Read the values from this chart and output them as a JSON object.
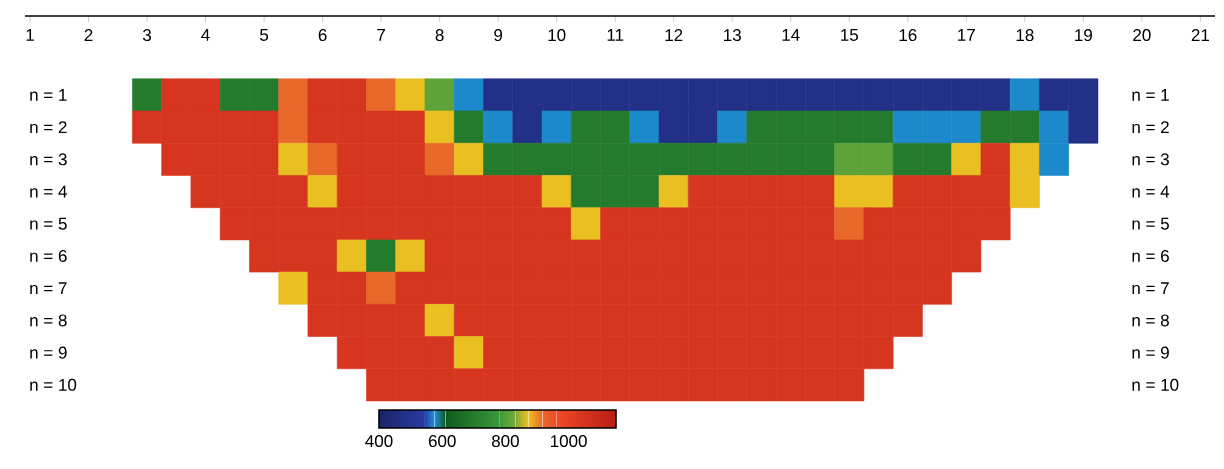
{
  "chart_data": {
    "type": "heatmap",
    "categories": [
      "1",
      null,
      "2",
      null,
      "3",
      null,
      "4",
      null,
      "5",
      null,
      "6",
      null,
      "7",
      null,
      "8",
      null,
      "9",
      null,
      "10",
      null,
      "11",
      null,
      "12",
      null,
      "13",
      null,
      "14",
      null,
      "15",
      null,
      "16",
      null,
      "17",
      null,
      "18",
      null,
      "19",
      null,
      "20",
      null,
      "21"
    ],
    "y_categories": [
      "n = 1",
      "n = 2",
      "n = 3",
      "n = 4",
      "n = 5",
      "n = 6",
      "n = 7",
      "n = 8",
      "n = 9",
      "n = 10"
    ],
    "y2_categories": [
      "n = 1",
      "n = 2",
      "n = 3",
      "n = 4",
      "n = 5",
      "n = 6",
      "n = 7",
      "n = 8",
      "n = 9",
      "n = 10"
    ],
    "cells": [
      [
        null,
        null,
        null,
        null,
        700,
        1050,
        1050,
        700,
        700,
        920,
        1050,
        1050,
        920,
        870,
        810,
        580,
        480,
        480,
        480,
        480,
        480,
        480,
        480,
        480,
        480,
        480,
        480,
        480,
        480,
        480,
        480,
        480,
        480,
        480,
        580,
        480,
        480,
        null,
        null,
        null,
        null
      ],
      [
        null,
        null,
        null,
        null,
        1050,
        1050,
        1050,
        1050,
        1050,
        920,
        1050,
        1050,
        1050,
        1050,
        870,
        700,
        580,
        480,
        580,
        700,
        700,
        580,
        480,
        480,
        580,
        700,
        700,
        700,
        700,
        700,
        580,
        580,
        580,
        700,
        700,
        580,
        480,
        null,
        null,
        null,
        null
      ],
      [
        null,
        null,
        null,
        null,
        null,
        1050,
        1050,
        1050,
        1050,
        870,
        920,
        1050,
        1050,
        1050,
        920,
        870,
        700,
        700,
        700,
        700,
        700,
        700,
        700,
        700,
        700,
        700,
        700,
        700,
        810,
        810,
        700,
        700,
        870,
        1050,
        870,
        580,
        null,
        null,
        null,
        null,
        null
      ],
      [
        null,
        null,
        null,
        null,
        null,
        null,
        1050,
        1050,
        1050,
        1050,
        870,
        1050,
        1050,
        1050,
        1050,
        1050,
        1050,
        1050,
        870,
        700,
        700,
        700,
        870,
        1050,
        1050,
        1050,
        1050,
        1050,
        870,
        870,
        1050,
        1050,
        1050,
        1050,
        870,
        null,
        null,
        null,
        null,
        null,
        null
      ],
      [
        null,
        null,
        null,
        null,
        null,
        null,
        null,
        1050,
        1050,
        1050,
        1050,
        1050,
        1050,
        1050,
        1050,
        1050,
        1050,
        1050,
        1050,
        870,
        1050,
        1050,
        1050,
        1050,
        1050,
        1050,
        1050,
        1050,
        920,
        1050,
        1050,
        1050,
        1050,
        1050,
        null,
        null,
        null,
        null,
        null,
        null,
        null
      ],
      [
        null,
        null,
        null,
        null,
        null,
        null,
        null,
        null,
        1050,
        1050,
        1050,
        870,
        700,
        870,
        1050,
        1050,
        1050,
        1050,
        1050,
        1050,
        1050,
        1050,
        1050,
        1050,
        1050,
        1050,
        1050,
        1050,
        1050,
        1050,
        1050,
        1050,
        1050,
        null,
        null,
        null,
        null,
        null,
        null,
        null,
        null
      ],
      [
        null,
        null,
        null,
        null,
        null,
        null,
        null,
        null,
        null,
        870,
        1050,
        1050,
        920,
        1050,
        1050,
        1050,
        1050,
        1050,
        1050,
        1050,
        1050,
        1050,
        1050,
        1050,
        1050,
        1050,
        1050,
        1050,
        1050,
        1050,
        1050,
        1050,
        null,
        null,
        null,
        null,
        null,
        null,
        null,
        null,
        null
      ],
      [
        null,
        null,
        null,
        null,
        null,
        null,
        null,
        null,
        null,
        null,
        1050,
        1050,
        1050,
        1050,
        870,
        1050,
        1050,
        1050,
        1050,
        1050,
        1050,
        1050,
        1050,
        1050,
        1050,
        1050,
        1050,
        1050,
        1050,
        1050,
        1050,
        null,
        null,
        null,
        null,
        null,
        null,
        null,
        null,
        null,
        null
      ],
      [
        null,
        null,
        null,
        null,
        null,
        null,
        null,
        null,
        null,
        null,
        null,
        1050,
        1050,
        1050,
        1050,
        870,
        1050,
        1050,
        1050,
        1050,
        1050,
        1050,
        1050,
        1050,
        1050,
        1050,
        1050,
        1050,
        1050,
        1050,
        null,
        null,
        null,
        null,
        null,
        null,
        null,
        null,
        null,
        null,
        null
      ],
      [
        null,
        null,
        null,
        null,
        null,
        null,
        null,
        null,
        null,
        null,
        null,
        null,
        1050,
        1050,
        1050,
        1050,
        1050,
        1050,
        1050,
        1050,
        1050,
        1050,
        1050,
        1050,
        1050,
        1050,
        1050,
        1050,
        1050,
        null,
        null,
        null,
        null,
        null,
        null,
        null,
        null,
        null,
        null,
        null,
        null
      ]
    ],
    "clim": [
      400,
      1150
    ],
    "cticks": [
      400,
      600,
      800,
      1000
    ]
  }
}
